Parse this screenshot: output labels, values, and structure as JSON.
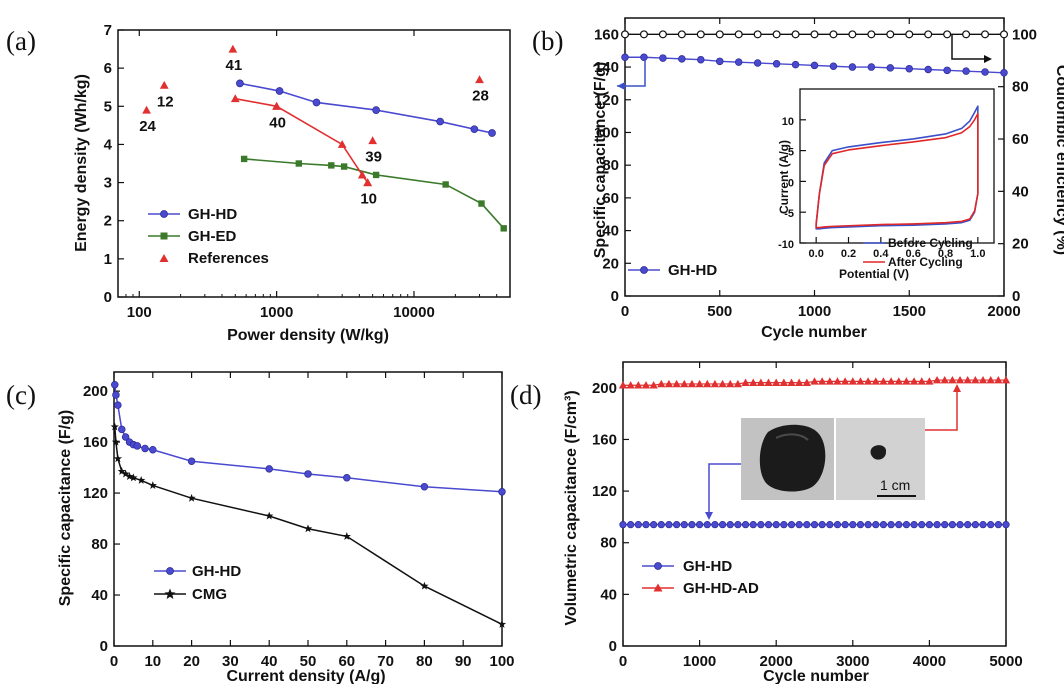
{
  "chart_data": [
    {
      "panel_label": "(a)",
      "type": "line",
      "xlabel": "Power density (W/kg)",
      "ylabel": "Energy density (Wh/kg)",
      "xscale": "log",
      "xlim": [
        70,
        50000
      ],
      "ylim": [
        0,
        7
      ],
      "xticks": [
        100,
        1000,
        10000
      ],
      "xtick_labels": [
        "100",
        "1000",
        "10000"
      ],
      "yticks": [
        0,
        1,
        2,
        3,
        4,
        5,
        6,
        7
      ],
      "series": [
        {
          "name": "GH-HD",
          "color": "#4a4ad0",
          "marker": "circle",
          "x": [
            540,
            1050,
            1950,
            5300,
            15500,
            27500,
            37000
          ],
          "y": [
            5.6,
            5.4,
            5.1,
            4.9,
            4.6,
            4.4,
            4.3
          ]
        },
        {
          "name": "GH-ED",
          "color": "#3a7a2a",
          "marker": "square",
          "x": [
            580,
            1450,
            2500,
            3100,
            5300,
            17000,
            31000,
            45000
          ],
          "y": [
            3.62,
            3.5,
            3.45,
            3.42,
            3.2,
            2.95,
            2.45,
            1.8
          ]
        },
        {
          "name": "",
          "color": "#e03030",
          "marker": "triangle",
          "x": [
            500,
            1000,
            3000,
            4200,
            4600
          ],
          "y": [
            5.2,
            5.0,
            4.0,
            3.2,
            3.0
          ]
        }
      ],
      "references": {
        "name": "References",
        "color": "#e03030",
        "points": [
          {
            "label": "41",
            "x": 480,
            "y": 6.5
          },
          {
            "label": "12",
            "x": 152,
            "y": 5.55
          },
          {
            "label": "24",
            "x": 113,
            "y": 4.9
          },
          {
            "label": "40",
            "x": 1000,
            "y": 5.0
          },
          {
            "label": "39",
            "x": 5000,
            "y": 4.1
          },
          {
            "label": "10",
            "x": 4600,
            "y": 3.0
          },
          {
            "label": "28",
            "x": 30000,
            "y": 5.7
          }
        ]
      },
      "legend": [
        "GH-HD",
        "GH-ED",
        "References"
      ],
      "legend_position": "lower-left"
    },
    {
      "panel_label": "(b)",
      "type": "line",
      "xlabel": "Cycle number",
      "ylabel": "Specific capacitance (F/g)",
      "y2label": "Coulombic efficiency (%)",
      "xlim": [
        0,
        2000
      ],
      "ylim": [
        0,
        170
      ],
      "y2lim": [
        0,
        106.25
      ],
      "xticks": [
        0,
        500,
        1000,
        1500,
        2000
      ],
      "yticks": [
        0,
        20,
        40,
        60,
        80,
        100,
        120,
        140,
        160
      ],
      "y2ticks": [
        0,
        20,
        40,
        60,
        80,
        100
      ],
      "series": [
        {
          "name": "GH-HD",
          "color": "#4a4ad0",
          "marker": "circle",
          "axis": "left",
          "x": [
            0,
            100,
            200,
            300,
            400,
            500,
            600,
            700,
            800,
            900,
            1000,
            1100,
            1200,
            1300,
            1400,
            1500,
            1600,
            1700,
            1800,
            1900,
            2000
          ],
          "y": [
            146,
            146,
            145.5,
            145,
            144.5,
            143.5,
            143,
            142.5,
            142,
            141.5,
            141,
            140.5,
            140,
            140,
            139.5,
            139,
            138.5,
            138,
            137.5,
            137,
            136.5
          ]
        },
        {
          "name": "",
          "color": "#111111",
          "marker": "circle",
          "axis": "right",
          "x": [
            0,
            100,
            200,
            300,
            400,
            500,
            600,
            700,
            800,
            900,
            1000,
            1100,
            1200,
            1300,
            1400,
            1500,
            1600,
            1700,
            1800,
            1900,
            2000
          ],
          "y": [
            100,
            100,
            100,
            100,
            100,
            100,
            100,
            100,
            100,
            100,
            100,
            100,
            100,
            100,
            100,
            100,
            100,
            100,
            100,
            100,
            100
          ]
        }
      ],
      "legend": [
        "GH-HD"
      ],
      "legend_position": "bottom-left",
      "inset": {
        "type": "line",
        "xlabel": "Potential (V)",
        "ylabel": "Current (A/g)",
        "xlim": [
          -0.1,
          1.1
        ],
        "ylim": [
          -10,
          15
        ],
        "xticks": [
          0.0,
          0.2,
          0.4,
          0.6,
          0.8,
          1.0
        ],
        "xtick_labels": [
          "0.0",
          "0.2",
          "0.4",
          "0.6",
          "0.8",
          "1.0"
        ],
        "yticks": [
          -10,
          -5,
          0,
          5,
          10
        ],
        "series": [
          {
            "name": "Before Cycling",
            "color": "#3a50c8",
            "x": [
              0.0,
              0.02,
              0.05,
              0.1,
              0.2,
              0.4,
              0.6,
              0.8,
              0.9,
              0.95,
              0.98,
              1.0,
              1.0,
              0.98,
              0.95,
              0.9,
              0.8,
              0.6,
              0.4,
              0.2,
              0.1,
              0.05,
              0.02,
              0.0,
              0.0
            ],
            "y": [
              -7,
              -2,
              3,
              5,
              5.6,
              6.3,
              6.9,
              7.7,
              8.6,
              9.8,
              11.2,
              12.2,
              -2,
              -5,
              -6.3,
              -6.7,
              -6.9,
              -7.1,
              -7.2,
              -7.4,
              -7.5,
              -7.6,
              -7.7,
              -7.7,
              -7
            ]
          },
          {
            "name": "After Cycling",
            "color": "#e02828",
            "x": [
              0.0,
              0.02,
              0.05,
              0.1,
              0.2,
              0.4,
              0.6,
              0.8,
              0.9,
              0.95,
              0.98,
              1.0,
              1.0,
              0.98,
              0.95,
              0.9,
              0.8,
              0.6,
              0.4,
              0.2,
              0.1,
              0.05,
              0.02,
              0.0,
              0.0
            ],
            "y": [
              -6.8,
              -2,
              2.6,
              4.5,
              5.1,
              5.8,
              6.4,
              7.1,
              7.9,
              8.9,
              10,
              11,
              -2,
              -4.8,
              -6.1,
              -6.5,
              -6.7,
              -6.9,
              -7.0,
              -7.2,
              -7.3,
              -7.4,
              -7.5,
              -7.5,
              -6.8
            ]
          }
        ],
        "legend": [
          "Before Cycling",
          "After Cycling"
        ],
        "legend_position": "bottom-right"
      }
    },
    {
      "panel_label": "(c)",
      "type": "line",
      "xlabel": "Current density (A/g)",
      "ylabel": "Specific capacitance (F/g)",
      "xlim": [
        0,
        100
      ],
      "ylim": [
        0,
        215
      ],
      "xticks": [
        0,
        10,
        20,
        30,
        40,
        50,
        60,
        70,
        80,
        90,
        100
      ],
      "yticks": [
        0,
        40,
        80,
        120,
        160,
        200
      ],
      "series": [
        {
          "name": "GH-HD",
          "color": "#4a4ad0",
          "marker": "circle",
          "x": [
            0.2,
            0.5,
            1,
            2,
            3,
            4,
            5,
            6,
            8,
            10,
            20,
            40,
            50,
            60,
            80,
            100
          ],
          "y": [
            205,
            197,
            189,
            170,
            164,
            160,
            158,
            157,
            155,
            154,
            145,
            139,
            135,
            132,
            125,
            121
          ]
        },
        {
          "name": "CMG",
          "color": "#111111",
          "marker": "star",
          "x": [
            0.2,
            0.5,
            1,
            2,
            3,
            4,
            5,
            7,
            10,
            20,
            40,
            50,
            60,
            80,
            100
          ],
          "y": [
            172,
            160,
            147,
            137,
            135,
            133,
            132,
            130,
            126,
            116,
            102,
            92,
            86,
            47,
            17
          ]
        }
      ],
      "legend": [
        "GH-HD",
        "CMG"
      ],
      "legend_position": "lower-left"
    },
    {
      "panel_label": "(d)",
      "type": "line",
      "xlabel": "Cycle number",
      "ylabel": "Volumetric capacitance (F/cm³)",
      "xlim": [
        0,
        5000
      ],
      "ylim": [
        0,
        220
      ],
      "xticks": [
        0,
        1000,
        2000,
        3000,
        4000,
        5000
      ],
      "yticks": [
        0,
        40,
        80,
        120,
        160,
        200
      ],
      "series": [
        {
          "name": "GH-HD",
          "color": "#4a4ad0",
          "marker": "circle",
          "x_start": 0,
          "x_end": 5000,
          "x_step": 100,
          "y": [
            94,
            94,
            94,
            94,
            94,
            94,
            94,
            94,
            94,
            94,
            94,
            94,
            94,
            94,
            94,
            94,
            94,
            94,
            94,
            94,
            94,
            94,
            94,
            94,
            94,
            94,
            94,
            94,
            94,
            94,
            94,
            94,
            94,
            94,
            94,
            94,
            94,
            94,
            94,
            94,
            94,
            94,
            94,
            94,
            94,
            94,
            94,
            94,
            94,
            94,
            94
          ]
        },
        {
          "name": "GH-HD-AD",
          "color": "#e03030",
          "marker": "triangle",
          "x_start": 0,
          "x_end": 5000,
          "x_step": 100,
          "y": [
            202,
            202,
            202,
            202,
            202,
            203,
            203,
            203,
            203,
            203,
            203,
            203,
            203,
            203,
            203,
            203,
            204,
            204,
            204,
            204,
            204,
            204,
            204,
            204,
            204,
            205,
            205,
            205,
            205,
            205,
            205,
            205,
            205,
            205,
            205,
            205,
            205,
            205,
            205,
            205,
            205,
            206,
            206,
            206,
            206,
            206,
            206,
            206,
            206,
            206,
            206
          ]
        }
      ],
      "legend": [
        "GH-HD",
        "GH-HD-AD"
      ],
      "legend_position": "lower-left",
      "photo": {
        "scale_label": "1 cm"
      }
    }
  ]
}
